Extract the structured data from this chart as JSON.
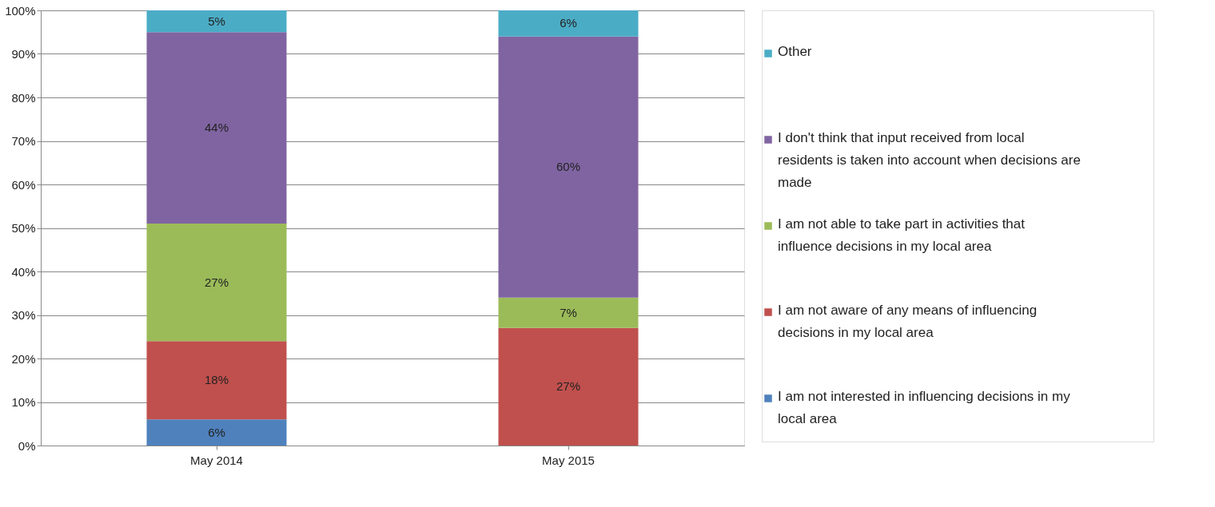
{
  "chart_data": {
    "type": "bar",
    "stacked": true,
    "categories": [
      "May 2014",
      "May 2015"
    ],
    "series": [
      {
        "name": "I am not interested in influencing decisions in my local area",
        "color": "#4f81bd",
        "values": [
          6,
          0
        ],
        "value_labels": [
          "6%",
          null
        ]
      },
      {
        "name": "I am not aware of any means of influencing decisions in my local area",
        "color": "#c0504d",
        "values": [
          18,
          27
        ],
        "value_labels": [
          "18%",
          "27%"
        ]
      },
      {
        "name": "I am not able to take part in activities that influence decisions in my local area",
        "color": "#9bbb59",
        "values": [
          27,
          7
        ],
        "value_labels": [
          "27%",
          "7%"
        ]
      },
      {
        "name": "I don't think that input received from local residents is taken into account when decisions are made",
        "color": "#8064a2",
        "values": [
          44,
          60
        ],
        "value_labels": [
          "44%",
          "60%"
        ]
      },
      {
        "name": "Other",
        "color": "#4bacc6",
        "values": [
          5,
          6
        ],
        "value_labels": [
          "5%",
          "6%"
        ]
      }
    ],
    "ylim": [
      0,
      100
    ],
    "yticks": [
      {
        "value": 0,
        "label": "0%"
      },
      {
        "value": 10,
        "label": "10%"
      },
      {
        "value": 20,
        "label": "20%"
      },
      {
        "value": 30,
        "label": "30%"
      },
      {
        "value": 40,
        "label": "40%"
      },
      {
        "value": 50,
        "label": "50%"
      },
      {
        "value": 60,
        "label": "60%"
      },
      {
        "value": 70,
        "label": "70%"
      },
      {
        "value": 80,
        "label": "80%"
      },
      {
        "value": 90,
        "label": "90%"
      },
      {
        "value": 100,
        "label": "100%"
      }
    ],
    "grid": "y",
    "legend": "right"
  }
}
